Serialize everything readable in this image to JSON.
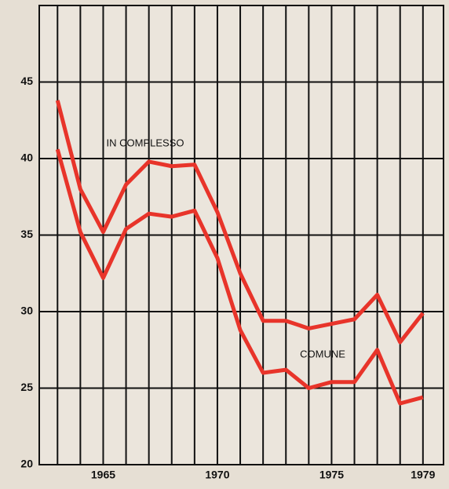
{
  "chart_data": {
    "type": "line",
    "x": [
      1963,
      1964,
      1965,
      1966,
      1967,
      1968,
      1969,
      1970,
      1971,
      1972,
      1973,
      1974,
      1975,
      1976,
      1977,
      1978,
      1979
    ],
    "series": [
      {
        "name": "IN COMPLESSO",
        "color": "#e8342a",
        "values": [
          43.8,
          38.0,
          35.2,
          38.3,
          39.8,
          39.5,
          39.6,
          36.5,
          32.5,
          29.4,
          29.4,
          28.9,
          29.2,
          29.5,
          31.1,
          28.0,
          29.9
        ]
      },
      {
        "name": "COMUNE",
        "color": "#e8342a",
        "values": [
          40.6,
          35.2,
          32.2,
          35.4,
          36.4,
          36.2,
          36.6,
          33.5,
          28.8,
          26.0,
          26.2,
          25.0,
          25.4,
          25.4,
          27.5,
          24.0,
          24.4
        ]
      }
    ],
    "xlim": [
      1962.2,
      1979.9
    ],
    "xticks": [
      1965,
      1970,
      1975,
      1979
    ],
    "ylim": [
      20,
      50
    ],
    "yticks": [
      20,
      25,
      30,
      35,
      40,
      45
    ],
    "grid": true
  }
}
